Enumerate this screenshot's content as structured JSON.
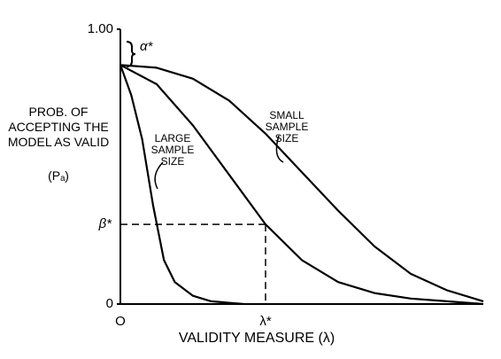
{
  "chart_data": {
    "type": "line",
    "y_label": "PROB. OF ACCEPTING THE MODEL AS VALID",
    "y_label_symbol": "(Pₐ)",
    "x_label": "VALIDITY MEASURE (λ)",
    "xlim": [
      0,
      10
    ],
    "ylim": [
      0,
      1
    ],
    "xticks": [
      {
        "value": 0,
        "label": "O"
      }
    ],
    "yticks": [
      {
        "value": 0,
        "label": "0"
      },
      {
        "value": 1,
        "label": "1.00"
      }
    ],
    "alpha": {
      "value": 0.87,
      "label": "α*"
    },
    "beta": {
      "value": 0.29,
      "label": "β*"
    },
    "lambda": {
      "value": 4,
      "label": "λ*"
    },
    "series": [
      {
        "name": "LARGE SAMPLE SIZE",
        "color": "#000000",
        "x": [
          0,
          0.3,
          0.6,
          0.9,
          1.2,
          1.5,
          2,
          2.5,
          3.4
        ],
        "values": [
          0.87,
          0.76,
          0.6,
          0.36,
          0.16,
          0.08,
          0.03,
          0.01,
          0
        ]
      },
      {
        "color": "#000000",
        "x": [
          0,
          1,
          2,
          3,
          4,
          5,
          6,
          7,
          8,
          9,
          10
        ],
        "values": [
          0.87,
          0.8,
          0.65,
          0.47,
          0.29,
          0.16,
          0.08,
          0.04,
          0.02,
          0.01,
          0
        ]
      },
      {
        "name": "SMALL SAMPLE SIZE",
        "color": "#000000",
        "x": [
          0,
          1,
          2,
          3,
          4,
          5,
          6,
          7,
          8,
          9,
          10
        ],
        "values": [
          0.87,
          0.86,
          0.82,
          0.74,
          0.62,
          0.48,
          0.34,
          0.21,
          0.11,
          0.05,
          0.01
        ]
      }
    ]
  }
}
